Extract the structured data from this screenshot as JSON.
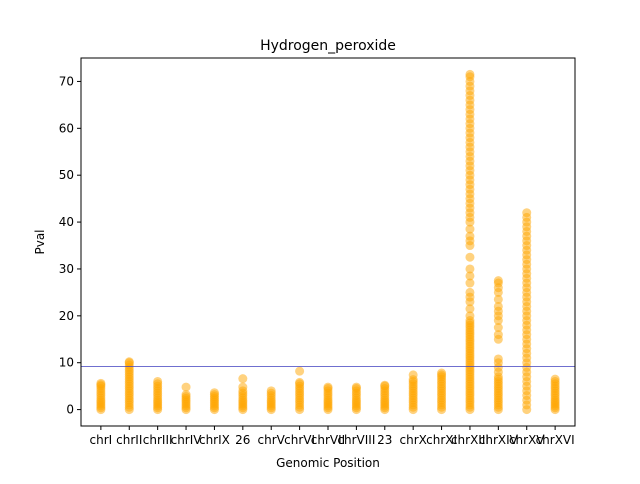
{
  "chart_data": {
    "type": "strip",
    "title": "Hydrogen_peroxide",
    "xlabel": "Genomic Position",
    "ylabel": "Pval",
    "categories": [
      "chrI",
      "chrII",
      "chrIII",
      "chrIV",
      "chrIX",
      "26",
      "chrV",
      "chrVI",
      "chrVII",
      "chrVIII",
      "23",
      "chrX",
      "chrXI",
      "chrXIII",
      "chrXIV",
      "chrXV",
      "chrXVI"
    ],
    "values": [
      [
        0,
        0.4,
        0.8,
        1.2,
        1.6,
        2,
        2.5,
        3,
        3.5,
        4,
        4.5,
        5,
        5.3,
        5.6
      ],
      [
        0,
        0.5,
        1,
        1.5,
        2,
        2.5,
        3,
        3.5,
        4,
        4.5,
        5,
        5.5,
        6,
        6.5,
        7,
        7.5,
        8,
        8.5,
        9,
        9.5,
        10,
        10.2
      ],
      [
        0,
        0.4,
        0.8,
        1.2,
        1.6,
        2,
        2.5,
        3,
        3.5,
        4,
        4.5,
        5,
        5.5,
        6
      ],
      [
        0,
        0.4,
        0.8,
        1.2,
        1.6,
        2,
        2.4,
        2.8,
        3.2,
        4.8
      ],
      [
        0,
        0.4,
        0.8,
        1.2,
        1.6,
        2,
        2.4,
        2.8,
        3.2,
        3.6
      ],
      [
        0,
        0.4,
        0.8,
        1.2,
        1.6,
        2,
        2.5,
        3,
        3.5,
        4,
        4.8,
        6.6
      ],
      [
        0,
        0.4,
        0.8,
        1.2,
        1.6,
        2,
        2.5,
        3,
        3.5,
        4
      ],
      [
        0,
        0.5,
        1,
        1.5,
        2,
        2.5,
        3,
        3.5,
        4,
        4.5,
        5,
        5.5,
        5.8,
        8.2
      ],
      [
        0,
        0.4,
        0.8,
        1.2,
        1.6,
        2,
        2.5,
        3,
        3.5,
        4,
        4.5,
        4.8
      ],
      [
        0,
        0.4,
        0.8,
        1.2,
        1.6,
        2,
        2.5,
        3,
        3.5,
        4,
        4.5,
        4.8
      ],
      [
        0,
        0.4,
        0.8,
        1.2,
        1.6,
        2,
        2.5,
        3,
        3.5,
        4,
        4.5,
        5,
        5.2
      ],
      [
        0,
        0.5,
        1,
        1.5,
        2,
        2.5,
        3,
        3.5,
        4,
        4.5,
        5,
        5.5,
        6,
        6.4,
        7.4
      ],
      [
        0,
        0.5,
        1,
        1.5,
        2,
        2.5,
        3,
        3.5,
        4,
        4.5,
        5,
        5.5,
        6,
        6.5,
        7,
        7.4,
        7.8
      ],
      [
        0,
        0.5,
        1,
        1.5,
        2,
        2.5,
        3,
        3.5,
        4,
        4.5,
        5,
        5.5,
        6,
        6.5,
        7,
        7.5,
        8,
        8.5,
        9,
        9.5,
        10,
        10.5,
        11,
        11.5,
        12,
        12.5,
        13,
        13.5,
        14,
        14.5,
        15,
        15.5,
        16,
        16.5,
        17,
        17.5,
        18,
        18.5,
        19,
        20,
        21.5,
        23,
        24,
        25,
        27,
        28.5,
        30,
        32.5,
        35,
        36,
        37,
        38.5,
        40,
        41,
        42,
        43,
        44,
        45,
        46,
        47,
        48,
        49,
        50,
        51,
        52,
        53,
        54,
        55,
        56,
        57,
        58,
        59,
        60,
        61,
        62,
        63,
        64,
        65,
        66,
        67,
        68,
        69,
        70,
        71,
        71.5
      ],
      [
        0,
        0.5,
        1,
        1.5,
        2,
        2.5,
        3,
        3.5,
        4,
        4.5,
        5,
        5.5,
        6,
        6.5,
        7,
        8,
        9,
        10,
        10.8,
        15,
        16,
        17.5,
        19,
        20,
        21,
        22,
        23.5,
        25,
        26,
        27,
        27.5
      ],
      [
        0,
        1,
        2,
        3,
        4,
        5,
        6,
        7,
        8,
        9,
        10,
        11,
        12,
        13,
        14,
        15,
        16,
        17,
        18,
        19,
        20,
        21,
        22,
        23,
        24,
        25,
        26,
        27,
        28,
        29,
        30,
        31,
        32,
        33,
        34,
        35,
        36,
        37,
        38,
        39,
        40,
        41,
        42
      ],
      [
        0,
        0.4,
        0.8,
        1.2,
        1.6,
        2,
        2.5,
        3,
        3.5,
        4,
        4.5,
        5,
        5.5,
        6,
        6.5
      ]
    ],
    "color": "#ffa500",
    "threshold": 9.2,
    "threshold_color": "#3f3fbf",
    "xlim": [
      -0.7,
      16.7
    ],
    "ylim": [
      -3.5,
      75
    ],
    "yticks": [
      0,
      10,
      20,
      30,
      40,
      50,
      60,
      70
    ]
  }
}
